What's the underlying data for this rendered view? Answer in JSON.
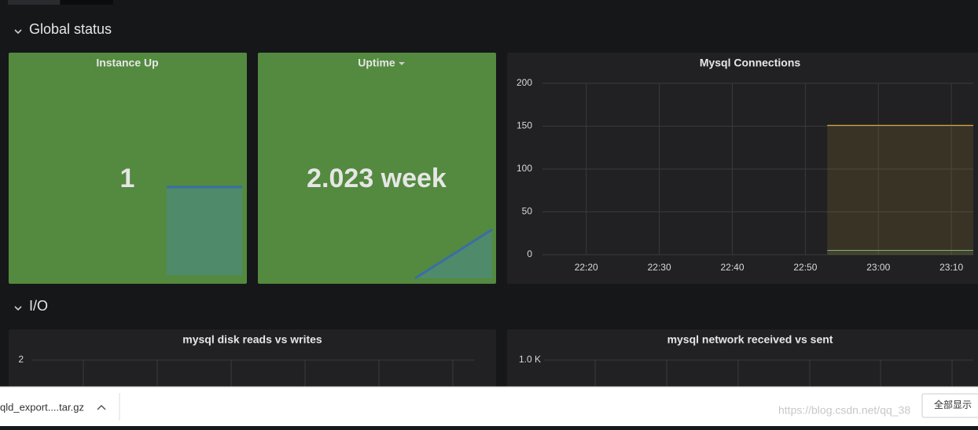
{
  "sections": [
    {
      "title": "Global status"
    },
    {
      "title": "I/O"
    }
  ],
  "panels": [
    {
      "title": "Instance Up",
      "value": "1"
    },
    {
      "title": "Uptime",
      "value": "2.023 week"
    },
    {
      "title": "Mysql Connections",
      "chart_data": {
        "type": "area",
        "xlim": [
          1334,
          1393
        ],
        "xticks": [
          {
            "value": 1340,
            "label": "22:20"
          },
          {
            "value": 1350,
            "label": "22:30"
          },
          {
            "value": 1360,
            "label": "22:40"
          },
          {
            "value": 1370,
            "label": "22:50"
          },
          {
            "value": 1380,
            "label": "23:00"
          },
          {
            "value": 1390,
            "label": "23:10"
          }
        ],
        "ylim": [
          0,
          200
        ],
        "yticks": [
          0,
          50,
          100,
          150,
          200
        ],
        "grid": true,
        "series": [
          {
            "color": "#eab839",
            "x": [
              1373,
              1393
            ],
            "values": [
              151,
              151
            ]
          },
          {
            "color": "#7eb26d",
            "x": [
              1373,
              1393
            ],
            "values": [
              5,
              5
            ]
          }
        ]
      }
    },
    {
      "title": "mysql disk reads vs writes",
      "chart_data": {
        "type": "line",
        "yticks": [
          2
        ],
        "grid": true
      }
    },
    {
      "title": "mysql network received vs sent",
      "chart_data": {
        "type": "line",
        "yticks": [
          {
            "value": 1000,
            "label": "1.0 K"
          }
        ],
        "grid": true
      }
    }
  ],
  "download_bar": {
    "file": "qld_export....tar.gz",
    "show_all": "全部显示"
  },
  "watermark": "https://blog.csdn.net/qq_38"
}
